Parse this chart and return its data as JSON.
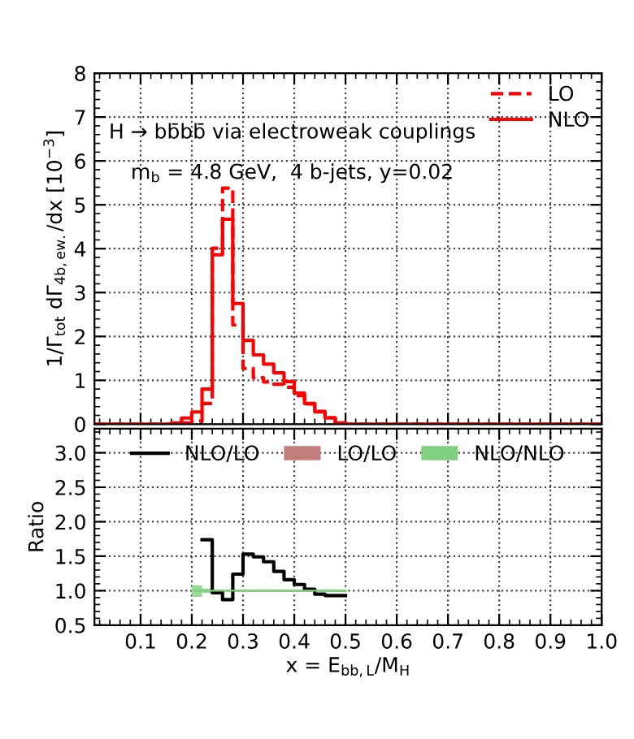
{
  "chart_data": [
    {
      "type": "step",
      "ylabel": "1/Γ$_{tot}$ dΓ$_{4b,ew.}$/dx [10$^{−3}$]",
      "annotations": [
        "H → bb̄bb̄ via electroweak couplings",
        "m$_{b}$ = 4.8 GeV,  4 b-jets, y=0.02"
      ],
      "x": [
        0.01,
        0.16,
        0.18,
        0.2,
        0.22,
        0.24,
        0.26,
        0.28,
        0.3,
        0.32,
        0.34,
        0.36,
        0.38,
        0.4,
        0.42,
        0.44,
        0.46,
        0.48,
        0.5,
        1.0
      ],
      "series": [
        {
          "name": "LO",
          "color": "#ff0000",
          "line_style": "dashed",
          "values": [
            0,
            0.01,
            0.03,
            0.07,
            0.47,
            4.01,
            5.38,
            2.26,
            1.27,
            1.06,
            0.96,
            0.91,
            0.84,
            0.65,
            0.46,
            0.29,
            0.15,
            0.03,
            0,
            0
          ]
        },
        {
          "name": "NLO",
          "color": "#ff0000",
          "line_style": "solid",
          "values": [
            0,
            0.03,
            0.14,
            0.28,
            0.8,
            3.86,
            4.67,
            2.75,
            1.91,
            1.58,
            1.37,
            1.17,
            0.97,
            0.71,
            0.47,
            0.28,
            0.14,
            0.03,
            0,
            0
          ]
        }
      ],
      "xlim": [
        0.01,
        1.0
      ],
      "xticks": [
        0.1,
        0.2,
        0.3,
        0.4,
        0.5,
        0.6,
        0.7,
        0.8,
        0.9,
        1.0
      ],
      "ylim": [
        0,
        8
      ],
      "yticks": [
        0,
        1,
        2,
        3,
        4,
        5,
        6,
        7,
        8
      ],
      "grid": true,
      "legend": "top right",
      "tick_labels": "y"
    },
    {
      "type": "step",
      "xlabel": "x = E$_{bb,L}$/M$_{H}$",
      "ylabel": "Ratio",
      "series": [
        {
          "name": "NLO/LO",
          "color": "#000000",
          "x": [
            0.22,
            0.24,
            0.26,
            0.28,
            0.3,
            0.32,
            0.34,
            0.36,
            0.38,
            0.4,
            0.42,
            0.44,
            0.46,
            0.48,
            0.5
          ],
          "values": [
            1.74,
            0.97,
            0.87,
            1.24,
            1.53,
            1.49,
            1.42,
            1.28,
            1.16,
            1.09,
            1.02,
            0.95,
            0.93,
            0.93,
            0.93
          ]
        },
        {
          "name": "LO/LO",
          "color": "#c27c7c",
          "type": "line"
        },
        {
          "name": "NLO/NLO",
          "color": "#80d080",
          "type": "line",
          "x": [
            0.2,
            0.22,
            0.22,
            0.24,
            0.24,
            0.5
          ],
          "values": [
            1.0,
            1.0,
            1.0,
            1.0,
            1.0,
            1.0
          ],
          "lower": [
            0.91,
            0.91,
            0.97,
            0.97,
            0.98,
            0.98
          ],
          "upper": [
            1.08,
            1.08,
            1.03,
            1.03,
            1.02,
            1.02
          ]
        }
      ],
      "xlim": [
        0.01,
        1.0
      ],
      "xticks": [
        0.1,
        0.2,
        0.3,
        0.4,
        0.5,
        0.6,
        0.7,
        0.8,
        0.9,
        {
          "value": 1.0,
          "label": "1.0"
        }
      ],
      "ylim": [
        0.5,
        3.35
      ],
      "yticks": [
        {
          "value": 0.5,
          "label": "0.5"
        },
        {
          "value": 1.0,
          "label": "1.0"
        },
        {
          "value": 1.5,
          "label": "1.5"
        },
        {
          "value": 2.0,
          "label": "2.0"
        },
        {
          "value": 2.5,
          "label": "2.5"
        },
        {
          "value": 3.0,
          "label": "3.0"
        }
      ],
      "grid": true,
      "legend": "top"
    }
  ]
}
